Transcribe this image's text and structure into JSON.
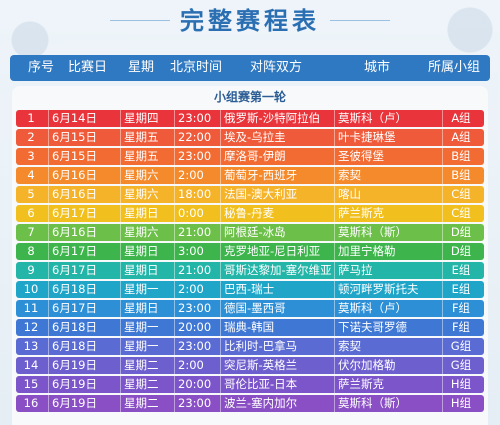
{
  "title": "完整赛程表",
  "header": {
    "no": "序号",
    "date": "比赛日",
    "weekday": "星期",
    "time": "北京时间",
    "match": "对阵双方",
    "city": "城市",
    "group": "所属小组"
  },
  "round_title": "小组赛第一轮",
  "row_colors": [
    "#e8343a",
    "#ef5a3a",
    "#f26b33",
    "#f48a2c",
    "#f5b32a",
    "#f2c01e",
    "#6cc04a",
    "#3eb44c",
    "#22b5a8",
    "#1fa5c8",
    "#2d8fd6",
    "#3f78d4",
    "#5a6bd3",
    "#6e5fcf",
    "#7b55c9",
    "#8a4fc4"
  ],
  "rows": [
    {
      "no": "1",
      "date": "6月14日",
      "weekday": "星期四",
      "time": "23:00",
      "match": "俄罗斯-沙特阿拉伯",
      "city": "莫斯科（卢）",
      "group": "A组"
    },
    {
      "no": "2",
      "date": "6月15日",
      "weekday": "星期五",
      "time": "22:00",
      "match": "埃及-乌拉圭",
      "city": "叶卡捷琳堡",
      "group": "A组"
    },
    {
      "no": "3",
      "date": "6月15日",
      "weekday": "星期五",
      "time": "23:00",
      "match": "摩洛哥-伊朗",
      "city": "圣彼得堡",
      "group": "B组"
    },
    {
      "no": "4",
      "date": "6月16日",
      "weekday": "星期六",
      "time": "2:00",
      "match": "葡萄牙-西班牙",
      "city": "索契",
      "group": "B组"
    },
    {
      "no": "5",
      "date": "6月16日",
      "weekday": "星期六",
      "time": "18:00",
      "match": "法国-澳大利亚",
      "city": "喀山",
      "group": "C组"
    },
    {
      "no": "6",
      "date": "6月17日",
      "weekday": "星期日",
      "time": "0:00",
      "match": "秘鲁-丹麦",
      "city": "萨兰斯克",
      "group": "C组"
    },
    {
      "no": "7",
      "date": "6月16日",
      "weekday": "星期六",
      "time": "21:00",
      "match": "阿根廷-冰岛",
      "city": "莫斯科（斯）",
      "group": "D组"
    },
    {
      "no": "8",
      "date": "6月17日",
      "weekday": "星期日",
      "time": "3:00",
      "match": "克罗地亚-尼日利亚",
      "city": "加里宁格勒",
      "group": "D组"
    },
    {
      "no": "9",
      "date": "6月17日",
      "weekday": "星期日",
      "time": "21:00",
      "match": "哥斯达黎加-塞尔维亚",
      "city": "萨马拉",
      "group": "E组"
    },
    {
      "no": "10",
      "date": "6月18日",
      "weekday": "星期一",
      "time": "2:00",
      "match": "巴西-瑞士",
      "city": "顿河畔罗斯托夫",
      "group": "E组"
    },
    {
      "no": "11",
      "date": "6月17日",
      "weekday": "星期日",
      "time": "23:00",
      "match": "德国-墨西哥",
      "city": "莫斯科（卢）",
      "group": "F组"
    },
    {
      "no": "12",
      "date": "6月18日",
      "weekday": "星期一",
      "time": "20:00",
      "match": "瑞典-韩国",
      "city": "下诺夫哥罗德",
      "group": "F组"
    },
    {
      "no": "13",
      "date": "6月18日",
      "weekday": "星期一",
      "time": "23:00",
      "match": "比利时-巴拿马",
      "city": "索契",
      "group": "G组"
    },
    {
      "no": "14",
      "date": "6月19日",
      "weekday": "星期二",
      "time": "2:00",
      "match": "突尼斯-英格兰",
      "city": "伏尔加格勒",
      "group": "G组"
    },
    {
      "no": "15",
      "date": "6月19日",
      "weekday": "星期二",
      "time": "20:00",
      "match": "哥伦比亚-日本",
      "city": "萨兰斯克",
      "group": "H组"
    },
    {
      "no": "16",
      "date": "6月19日",
      "weekday": "星期二",
      "time": "23:00",
      "match": "波兰-塞内加尔",
      "city": "莫斯科（斯）",
      "group": "H组"
    }
  ]
}
